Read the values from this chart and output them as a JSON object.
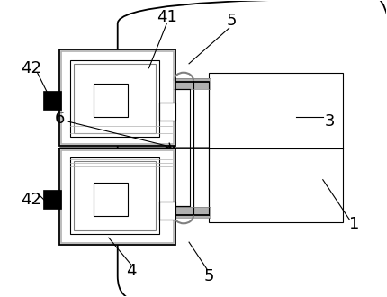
{
  "bg_color": "#ffffff",
  "line_color": "#000000",
  "gray_color": "#808080",
  "light_gray": "#b0b0b0",
  "figsize": [
    4.31,
    3.3
  ],
  "dpi": 100,
  "label_fs": 13,
  "leader_lw": 0.8,
  "main_lw": 1.3,
  "thin_lw": 0.8
}
